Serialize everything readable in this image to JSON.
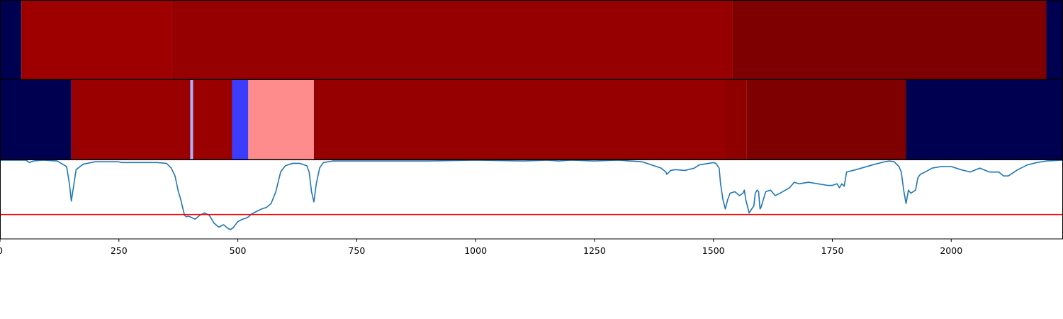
{
  "chart_data": {
    "type": "heatmap",
    "xlim": [
      0,
      2235
    ],
    "x_ticks": [
      0,
      250,
      500,
      750,
      1000,
      1250,
      1500,
      1750,
      2000
    ],
    "x_tick_labels": [
      "0",
      "250",
      "500",
      "750",
      "1000",
      "1250",
      "1500",
      "1750",
      "2000"
    ],
    "grid": false,
    "legend": "none",
    "tracks": [
      {
        "segments": [
          {
            "start": 0,
            "end": 45,
            "color": "#000050"
          },
          {
            "start": 45,
            "end": 362,
            "color": "#9e0000"
          },
          {
            "start": 362,
            "end": 1540,
            "color": "#960000"
          },
          {
            "start": 1540,
            "end": 2200,
            "color": "#7e0000"
          },
          {
            "start": 2200,
            "end": 2235,
            "color": "#000050"
          }
        ]
      },
      {
        "segments": [
          {
            "start": 0,
            "end": 150,
            "color": "#000050"
          },
          {
            "start": 150,
            "end": 400,
            "color": "#9b0000"
          },
          {
            "start": 400,
            "end": 406,
            "color": "#aab0ff"
          },
          {
            "start": 406,
            "end": 488,
            "color": "#9b0000"
          },
          {
            "start": 488,
            "end": 522,
            "color": "#3c3cff"
          },
          {
            "start": 522,
            "end": 660,
            "color": "#ff8c8c"
          },
          {
            "start": 660,
            "end": 1525,
            "color": "#960000"
          },
          {
            "start": 1525,
            "end": 1570,
            "color": "#8e0000"
          },
          {
            "start": 1570,
            "end": 1905,
            "color": "#7e0000"
          },
          {
            "start": 1905,
            "end": 2235,
            "color": "#000050"
          }
        ]
      }
    ],
    "line_panel": {
      "ylim": [
        0,
        1
      ],
      "threshold": 0.31,
      "threshold_color": "#ff0000",
      "line_color": "#1f77b4",
      "x": [
        0,
        55,
        62,
        70,
        90,
        120,
        140,
        146,
        150,
        153,
        160,
        175,
        200,
        250,
        255,
        300,
        330,
        350,
        360,
        368,
        375,
        380,
        388,
        392,
        395,
        400,
        410,
        420,
        430,
        440,
        450,
        460,
        470,
        480,
        485,
        490,
        500,
        510,
        520,
        530,
        540,
        550,
        560,
        570,
        580,
        590,
        600,
        615,
        630,
        645,
        650,
        655,
        660,
        665,
        672,
        680,
        700,
        800,
        900,
        1000,
        1100,
        1150,
        1175,
        1200,
        1250,
        1300,
        1350,
        1360,
        1380,
        1390,
        1400,
        1402,
        1410,
        1420,
        1440,
        1460,
        1470,
        1490,
        1500,
        1505,
        1512,
        1515,
        1520,
        1525,
        1530,
        1535,
        1545,
        1555,
        1562,
        1565,
        1568,
        1575,
        1585,
        1588,
        1592,
        1595,
        1598,
        1600,
        1610,
        1620,
        1630,
        1640,
        1660,
        1670,
        1680,
        1700,
        1720,
        1740,
        1750,
        1760,
        1765,
        1770,
        1775,
        1780,
        1800,
        1840,
        1860,
        1870,
        1880,
        1890,
        1895,
        1900,
        1905,
        1910,
        1915,
        1925,
        1930,
        1935,
        1945,
        1960,
        1980,
        2000,
        2020,
        2040,
        2060,
        2080,
        2100,
        2110,
        2120,
        2140,
        2160,
        2180,
        2200,
        2235
      ],
      "y": [
        1.0,
        1.0,
        0.97,
        0.99,
        1.0,
        0.99,
        0.92,
        0.7,
        0.48,
        0.6,
        0.88,
        0.95,
        0.98,
        0.98,
        0.97,
        0.97,
        0.97,
        0.96,
        0.9,
        0.8,
        0.6,
        0.5,
        0.3,
        0.28,
        0.29,
        0.28,
        0.25,
        0.3,
        0.33,
        0.3,
        0.2,
        0.15,
        0.18,
        0.13,
        0.12,
        0.14,
        0.22,
        0.25,
        0.27,
        0.32,
        0.35,
        0.38,
        0.4,
        0.45,
        0.6,
        0.85,
        0.93,
        0.96,
        0.96,
        0.93,
        0.85,
        0.6,
        0.47,
        0.7,
        0.9,
        0.97,
        0.99,
        0.99,
        0.99,
        1.0,
        0.99,
        1.0,
        0.99,
        1.0,
        0.99,
        1.0,
        0.98,
        0.96,
        0.92,
        0.9,
        0.85,
        0.82,
        0.87,
        0.88,
        0.87,
        0.9,
        0.94,
        0.96,
        0.97,
        0.96,
        0.9,
        0.7,
        0.5,
        0.38,
        0.5,
        0.58,
        0.6,
        0.55,
        0.58,
        0.62,
        0.5,
        0.33,
        0.42,
        0.58,
        0.62,
        0.6,
        0.38,
        0.4,
        0.6,
        0.62,
        0.55,
        0.58,
        0.65,
        0.72,
        0.7,
        0.72,
        0.7,
        0.68,
        0.68,
        0.7,
        0.65,
        0.7,
        0.67,
        0.85,
        0.88,
        0.95,
        0.98,
        0.99,
        0.98,
        0.92,
        0.85,
        0.62,
        0.45,
        0.62,
        0.58,
        0.62,
        0.78,
        0.82,
        0.85,
        0.9,
        0.92,
        0.92,
        0.88,
        0.85,
        0.9,
        0.85,
        0.85,
        0.8,
        0.8,
        0.88,
        0.94,
        0.97,
        0.99,
        1.0
      ]
    }
  }
}
